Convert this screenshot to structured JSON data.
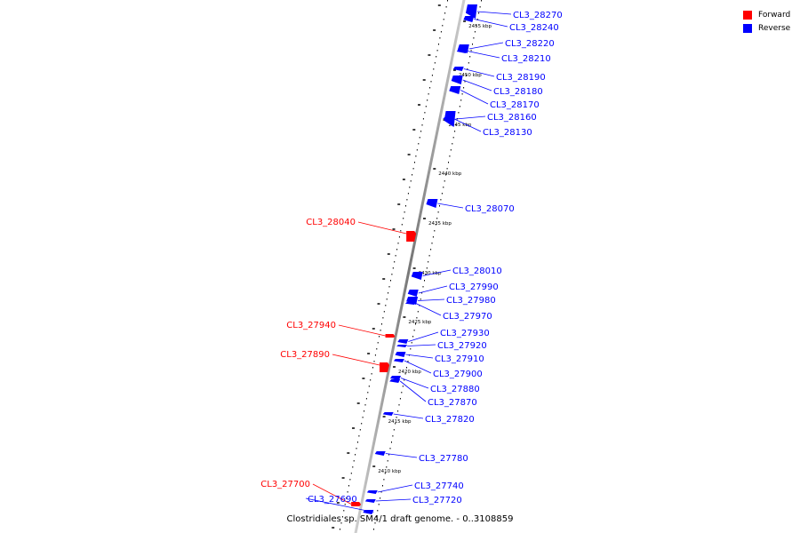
{
  "colors": {
    "forward": "#ff0000",
    "reverse": "#0000ff",
    "axis": "#888888",
    "tick": "#000000"
  },
  "legend": [
    {
      "label": "Forward",
      "color": "#ff0000"
    },
    {
      "label": "Reverse",
      "color": "#0000ff"
    }
  ],
  "caption": "Clostridiales sp. SM4/1 draft genome. - 0..3108859",
  "kbp_labels": [
    "2455 kbp",
    "2450 kbp",
    "2445 kbp",
    "2440 kbp",
    "2435 kbp",
    "2430 kbp",
    "2425 kbp",
    "2420 kbp",
    "2415 kbp",
    "2410 kbp"
  ],
  "genes": [
    {
      "id": "CL3_28270",
      "strand": "reverse"
    },
    {
      "id": "CL3_28240",
      "strand": "reverse"
    },
    {
      "id": "CL3_28220",
      "strand": "reverse"
    },
    {
      "id": "CL3_28210",
      "strand": "reverse"
    },
    {
      "id": "CL3_28190",
      "strand": "reverse"
    },
    {
      "id": "CL3_28180",
      "strand": "reverse"
    },
    {
      "id": "CL3_28170",
      "strand": "reverse"
    },
    {
      "id": "CL3_28160",
      "strand": "reverse"
    },
    {
      "id": "CL3_28130",
      "strand": "reverse"
    },
    {
      "id": "CL3_28070",
      "strand": "reverse"
    },
    {
      "id": "CL3_28040",
      "strand": "forward"
    },
    {
      "id": "CL3_28010",
      "strand": "reverse"
    },
    {
      "id": "CL3_27990",
      "strand": "reverse"
    },
    {
      "id": "CL3_27980",
      "strand": "reverse"
    },
    {
      "id": "CL3_27970",
      "strand": "reverse"
    },
    {
      "id": "CL3_27940",
      "strand": "forward"
    },
    {
      "id": "CL3_27930",
      "strand": "reverse"
    },
    {
      "id": "CL3_27920",
      "strand": "reverse"
    },
    {
      "id": "CL3_27910",
      "strand": "reverse"
    },
    {
      "id": "CL3_27890",
      "strand": "forward"
    },
    {
      "id": "CL3_27900",
      "strand": "reverse"
    },
    {
      "id": "CL3_27880",
      "strand": "reverse"
    },
    {
      "id": "CL3_27870",
      "strand": "reverse"
    },
    {
      "id": "CL3_27820",
      "strand": "reverse"
    },
    {
      "id": "CL3_27780",
      "strand": "reverse"
    },
    {
      "id": "CL3_27740",
      "strand": "reverse"
    },
    {
      "id": "CL3_27720",
      "strand": "reverse"
    },
    {
      "id": "CL3_27700",
      "strand": "forward"
    },
    {
      "id": "CL3_27690",
      "strand": "reverse"
    }
  ]
}
